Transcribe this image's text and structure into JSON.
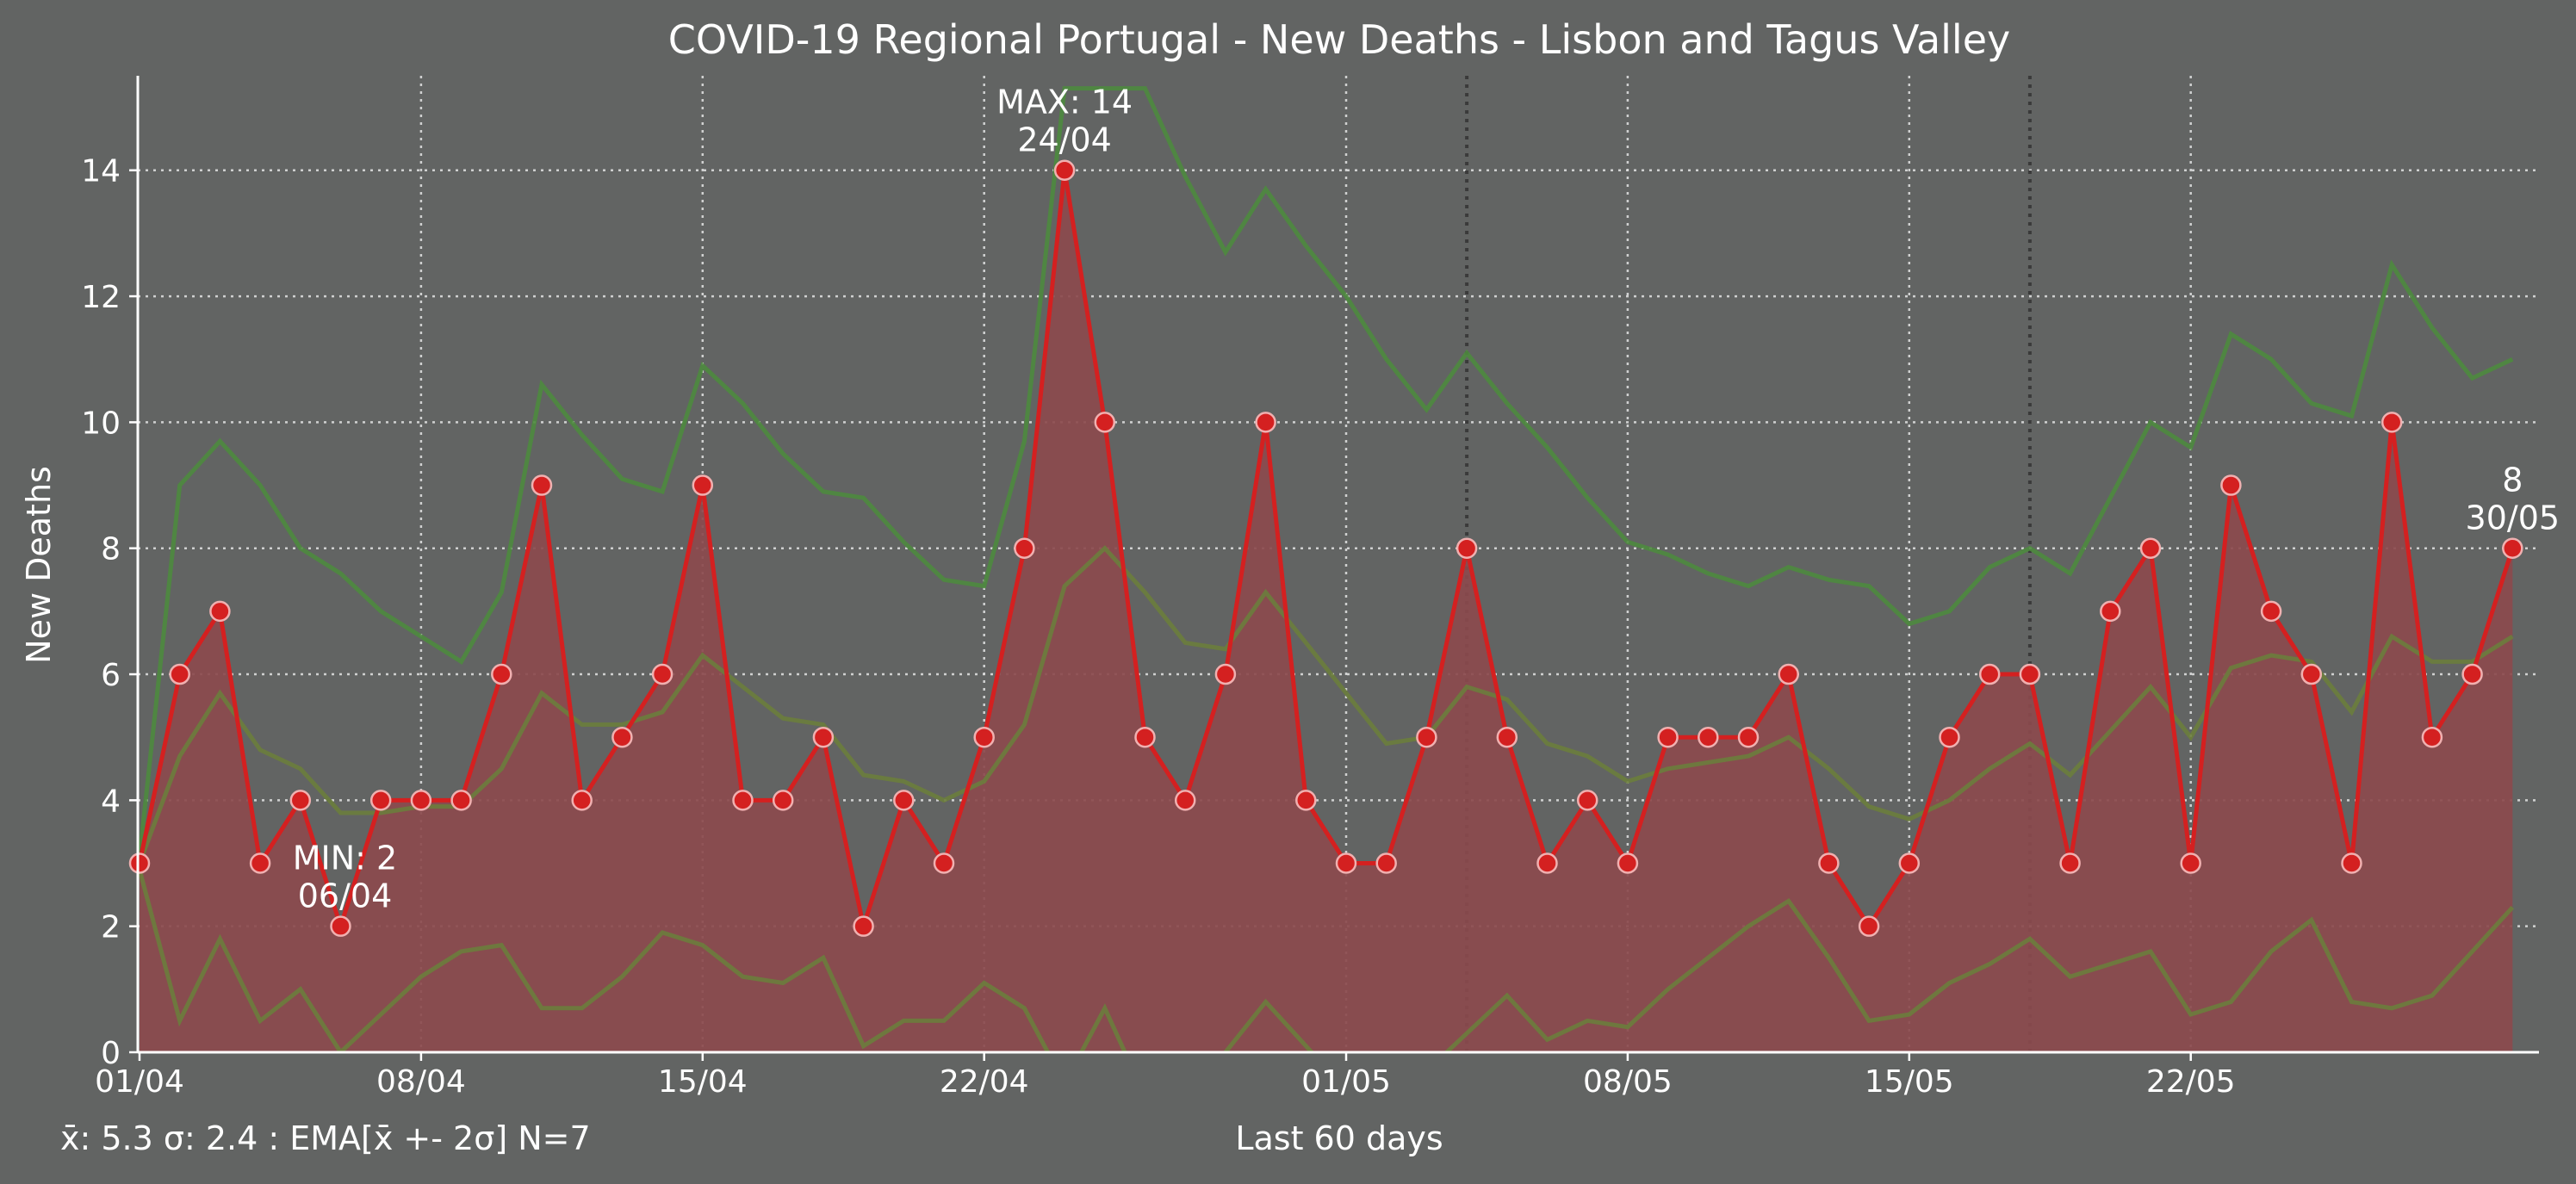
{
  "chart_data": {
    "type": "line",
    "title": "COVID-19 Regional Portugal - New Deaths - Lisbon and Tagus Valley",
    "xlabel": "Last 60 days",
    "ylabel": "New Deaths",
    "stats_text": "x̄: 5.3 σ: 2.4 : EMA[x̄ +- 2σ] N=7",
    "ylim": [
      0,
      15.5
    ],
    "yticks": [
      0,
      2,
      4,
      6,
      8,
      10,
      12,
      14
    ],
    "xticks": [
      {
        "index": 0,
        "label": "01/04"
      },
      {
        "index": 7,
        "label": "08/04"
      },
      {
        "index": 14,
        "label": "15/04"
      },
      {
        "index": 21,
        "label": "22/04"
      },
      {
        "index": 30,
        "label": "01/05"
      },
      {
        "index": 37,
        "label": "08/05"
      },
      {
        "index": 44,
        "label": "15/05"
      },
      {
        "index": 51,
        "label": "22/05"
      }
    ],
    "week_markers": [
      33,
      47
    ],
    "grid": true,
    "colors": {
      "background": "#626463",
      "line": "#d42020",
      "area": "#8b4a4d",
      "marker_edge": "#f0b0b0",
      "band_upper": "#4e8a3e",
      "band_mid": "#6b7d3c",
      "band_lower": "#6b7d3c",
      "stats_text": "#66ff33",
      "grid": "#dddddd",
      "week_line": "#3a3a3a"
    },
    "series": [
      {
        "name": "New Deaths",
        "values": [
          3,
          6,
          7,
          3,
          4,
          2,
          4,
          4,
          4,
          6,
          9,
          4,
          5,
          6,
          9,
          4,
          4,
          5,
          2,
          4,
          3,
          5,
          8,
          14,
          10,
          5,
          4,
          6,
          10,
          4,
          3,
          3,
          5,
          8,
          5,
          3,
          4,
          3,
          5,
          5,
          5,
          6,
          3,
          2,
          3,
          5,
          6,
          6,
          3,
          7,
          8,
          3,
          9,
          7,
          6,
          3,
          10,
          5,
          6,
          8
        ]
      },
      {
        "values": [
          3.1,
          9,
          9.7,
          9,
          8,
          7.6,
          7,
          6.6,
          6.2,
          7.3,
          10.6,
          9.8,
          9.1,
          8.9,
          10.9,
          10.3,
          9.5,
          8.9,
          8.8,
          8.1,
          7.5,
          7.4,
          9.7,
          15.3,
          15.3,
          15.3,
          13.9,
          12.7,
          13.7,
          12.8,
          12,
          11,
          10.2,
          11.1,
          10.3,
          9.6,
          8.8,
          8.1,
          7.9,
          7.6,
          7.4,
          7.7,
          7.5,
          7.4,
          6.8,
          7,
          7.7,
          8,
          7.6,
          8.8,
          10,
          9.6,
          11.4,
          11,
          10.3,
          10.1,
          12.5,
          11.5,
          10.7,
          11
        ]
      },
      {
        "values": [
          3,
          4.7,
          5.7,
          4.8,
          4.5,
          3.8,
          3.8,
          3.9,
          3.9,
          4.5,
          5.7,
          5.2,
          5.2,
          5.4,
          6.3,
          5.8,
          5.3,
          5.2,
          4.4,
          4.3,
          4,
          4.3,
          5.2,
          7.4,
          8,
          7.3,
          6.5,
          6.4,
          7.3,
          6.5,
          5.7,
          4.9,
          5,
          5.8,
          5.6,
          4.9,
          4.7,
          4.3,
          4.5,
          4.6,
          4.7,
          5,
          4.5,
          3.9,
          3.7,
          4,
          4.5,
          4.9,
          4.4,
          5.1,
          5.8,
          5,
          6.1,
          6.3,
          6.2,
          5.4,
          6.6,
          6.2,
          6.2,
          6.6
        ]
      },
      {
        "values": [
          2.9,
          0.5,
          1.8,
          0.5,
          1,
          0,
          0.6,
          1.2,
          1.6,
          1.7,
          0.7,
          0.7,
          1.2,
          1.9,
          1.7,
          1.2,
          1.1,
          1.5,
          0.1,
          0.5,
          0.5,
          1.1,
          0.7,
          -0.5,
          0.7,
          -0.7,
          -1,
          0,
          0.8,
          0.1,
          -0.6,
          -1.2,
          -0.3,
          0.3,
          0.9,
          0.2,
          0.5,
          0.4,
          1,
          1.5,
          2,
          2.4,
          1.5,
          0.5,
          0.6,
          1.1,
          1.4,
          1.8,
          1.2,
          1.4,
          1.6,
          0.6,
          0.8,
          1.6,
          2.1,
          0.8,
          0.7,
          0.9,
          1.6,
          2.3
        ]
      }
    ],
    "annotations": [
      {
        "index": 23,
        "value": 14,
        "lines": [
          "MAX: 14",
          "24/04"
        ],
        "position": "above"
      },
      {
        "index": 5,
        "value": 2,
        "lines": [
          "MIN: 2",
          "06/04"
        ],
        "position": "above"
      },
      {
        "index": 59,
        "value": 8,
        "lines": [
          "8",
          "30/05"
        ],
        "position": "above"
      }
    ]
  }
}
